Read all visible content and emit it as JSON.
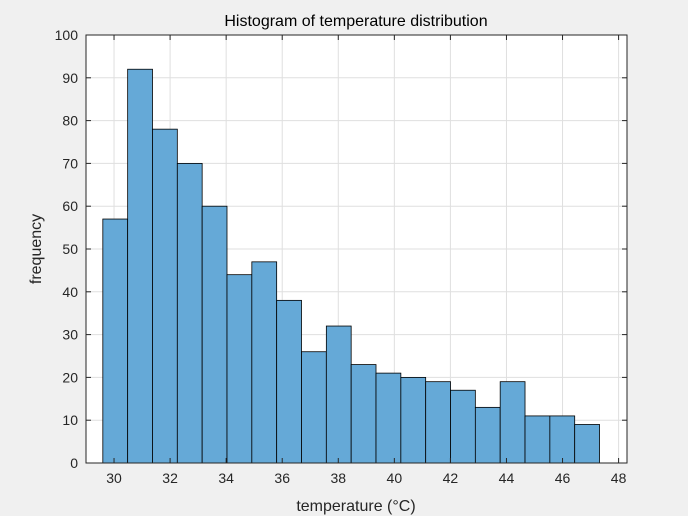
{
  "chart_data": {
    "type": "bar",
    "title": "Histogram of temperature distribution",
    "xlabel": "temperature (°C)",
    "ylabel": "frequency",
    "xlim": [
      29,
      48.3
    ],
    "ylim": [
      0,
      100
    ],
    "bin_edges": [
      29.6,
      30.486,
      31.372,
      32.258,
      33.144,
      34.03,
      34.916,
      35.802,
      36.688,
      37.574,
      38.46,
      39.346,
      40.232,
      41.118,
      42.004,
      42.89,
      43.776,
      44.662,
      45.548,
      46.434,
      47.32
    ],
    "values": [
      57,
      92,
      78,
      70,
      60,
      44,
      47,
      38,
      26,
      32,
      23,
      21,
      20,
      19,
      17,
      13,
      19,
      11,
      11,
      9
    ],
    "x_ticks": [
      30,
      32,
      34,
      36,
      38,
      40,
      42,
      44,
      46,
      48
    ],
    "y_ticks": [
      0,
      10,
      20,
      30,
      40,
      50,
      60,
      70,
      80,
      90,
      100
    ],
    "grid": true,
    "bar_color": "#65a9d7",
    "bar_edge_color": "#000000"
  }
}
